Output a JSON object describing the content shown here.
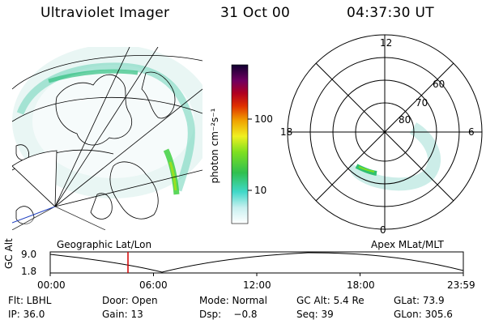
{
  "header": {
    "instrument": "Ultraviolet Imager",
    "date": "31 Oct 00",
    "time": "04:37:30 UT"
  },
  "colorbar": {
    "label": "photon cm⁻²s⁻¹",
    "ticks": [
      "100",
      "10"
    ]
  },
  "polar_plot": {
    "hour_labels": [
      "12",
      "18",
      "6",
      "0"
    ],
    "lat_labels": [
      "60",
      "70",
      "80"
    ]
  },
  "timeline": {
    "left_caption": "Geographic Lat/Lon",
    "right_caption": "Apex MLat/MLT",
    "axis_title": "GC Alt",
    "y_ticks": [
      "9.0",
      "1.8"
    ],
    "x_ticks": [
      "00:00",
      "06:00",
      "12:00",
      "18:00",
      "23:59"
    ],
    "current_marker_time": "04:37:30",
    "marker_color": "#d40000"
  },
  "status": {
    "filter": "Flt: LBHL",
    "ip": "IP: 36.0",
    "door": "Door: Open",
    "gain": "Gain: 13",
    "mode": "Mode: Normal",
    "dsp": "Dsp:    −0.8",
    "gc_alt": "GC Alt: 5.4 Re",
    "seq": "Seq: 39",
    "glat": "GLat: 73.9",
    "glon": "GLon: 305.6"
  }
}
